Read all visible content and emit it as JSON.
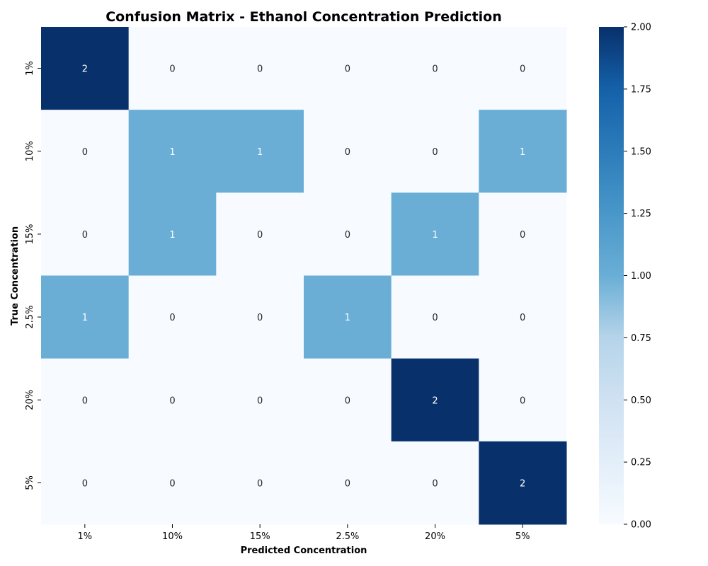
{
  "chart_data": {
    "type": "heatmap",
    "title": "Confusion Matrix - Ethanol Concentration Prediction",
    "xlabel": "Predicted Concentration",
    "ylabel": "True Concentration",
    "x_categories": [
      "1%",
      "10%",
      "15%",
      "2.5%",
      "20%",
      "5%"
    ],
    "y_categories": [
      "1%",
      "10%",
      "15%",
      "2.5%",
      "20%",
      "5%"
    ],
    "values": [
      [
        2,
        0,
        0,
        0,
        0,
        0
      ],
      [
        0,
        1,
        1,
        0,
        0,
        1
      ],
      [
        0,
        1,
        0,
        0,
        1,
        0
      ],
      [
        1,
        0,
        0,
        1,
        0,
        0
      ],
      [
        0,
        0,
        0,
        0,
        2,
        0
      ],
      [
        0,
        0,
        0,
        0,
        0,
        2
      ]
    ],
    "annotated": true,
    "colormap": "Blues",
    "colorbar": {
      "range": [
        0,
        2
      ],
      "ticks": [
        "0.00",
        "0.25",
        "0.50",
        "0.75",
        "1.00",
        "1.25",
        "1.50",
        "1.75",
        "2.00"
      ]
    },
    "colors": {
      "value_0": "#f7fbff",
      "value_1": "#6aaed6",
      "value_2": "#08306b"
    }
  }
}
